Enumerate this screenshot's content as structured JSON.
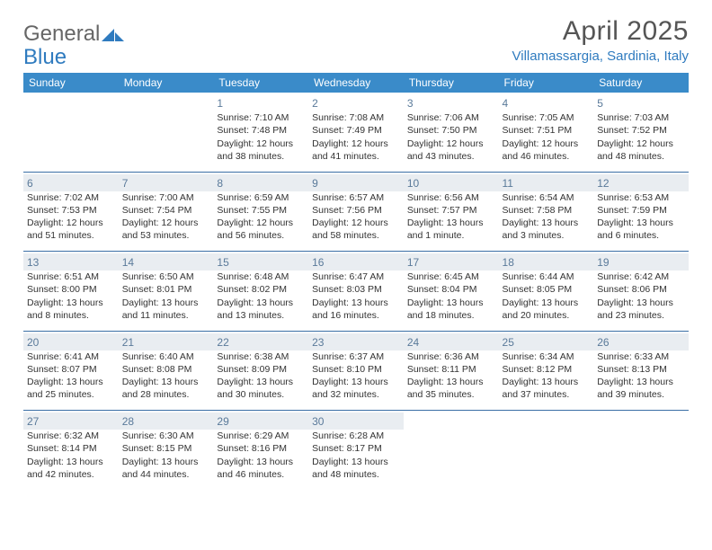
{
  "brand": {
    "part1": "General",
    "part2": "Blue"
  },
  "title": "April 2025",
  "location": "Villamassargia, Sardinia, Italy",
  "colors": {
    "header_bg": "#3a8bc9",
    "header_text": "#ffffff",
    "accent": "#2f7bbf",
    "row_border": "#3a6ea5",
    "daynum": "#5a7a9a",
    "shade_bg": "#e9edf1",
    "body_text": "#333333",
    "title_text": "#555555",
    "background": "#ffffff"
  },
  "typography": {
    "title_fontsize": 30,
    "location_fontsize": 15,
    "dayheader_fontsize": 12,
    "daynum_fontsize": 12,
    "cell_fontsize": 10.5
  },
  "day_headers": [
    "Sunday",
    "Monday",
    "Tuesday",
    "Wednesday",
    "Thursday",
    "Friday",
    "Saturday"
  ],
  "weeks": [
    [
      {
        "n": "",
        "lines": [],
        "shade": false
      },
      {
        "n": "",
        "lines": [],
        "shade": false
      },
      {
        "n": "1",
        "lines": [
          "Sunrise: 7:10 AM",
          "Sunset: 7:48 PM",
          "Daylight: 12 hours and 38 minutes."
        ],
        "shade": false
      },
      {
        "n": "2",
        "lines": [
          "Sunrise: 7:08 AM",
          "Sunset: 7:49 PM",
          "Daylight: 12 hours and 41 minutes."
        ],
        "shade": false
      },
      {
        "n": "3",
        "lines": [
          "Sunrise: 7:06 AM",
          "Sunset: 7:50 PM",
          "Daylight: 12 hours and 43 minutes."
        ],
        "shade": false
      },
      {
        "n": "4",
        "lines": [
          "Sunrise: 7:05 AM",
          "Sunset: 7:51 PM",
          "Daylight: 12 hours and 46 minutes."
        ],
        "shade": false
      },
      {
        "n": "5",
        "lines": [
          "Sunrise: 7:03 AM",
          "Sunset: 7:52 PM",
          "Daylight: 12 hours and 48 minutes."
        ],
        "shade": false
      }
    ],
    [
      {
        "n": "6",
        "lines": [
          "Sunrise: 7:02 AM",
          "Sunset: 7:53 PM",
          "Daylight: 12 hours and 51 minutes."
        ],
        "shade": true
      },
      {
        "n": "7",
        "lines": [
          "Sunrise: 7:00 AM",
          "Sunset: 7:54 PM",
          "Daylight: 12 hours and 53 minutes."
        ],
        "shade": true
      },
      {
        "n": "8",
        "lines": [
          "Sunrise: 6:59 AM",
          "Sunset: 7:55 PM",
          "Daylight: 12 hours and 56 minutes."
        ],
        "shade": true
      },
      {
        "n": "9",
        "lines": [
          "Sunrise: 6:57 AM",
          "Sunset: 7:56 PM",
          "Daylight: 12 hours and 58 minutes."
        ],
        "shade": true
      },
      {
        "n": "10",
        "lines": [
          "Sunrise: 6:56 AM",
          "Sunset: 7:57 PM",
          "Daylight: 13 hours and 1 minute."
        ],
        "shade": true
      },
      {
        "n": "11",
        "lines": [
          "Sunrise: 6:54 AM",
          "Sunset: 7:58 PM",
          "Daylight: 13 hours and 3 minutes."
        ],
        "shade": true
      },
      {
        "n": "12",
        "lines": [
          "Sunrise: 6:53 AM",
          "Sunset: 7:59 PM",
          "Daylight: 13 hours and 6 minutes."
        ],
        "shade": true
      }
    ],
    [
      {
        "n": "13",
        "lines": [
          "Sunrise: 6:51 AM",
          "Sunset: 8:00 PM",
          "Daylight: 13 hours and 8 minutes."
        ],
        "shade": true
      },
      {
        "n": "14",
        "lines": [
          "Sunrise: 6:50 AM",
          "Sunset: 8:01 PM",
          "Daylight: 13 hours and 11 minutes."
        ],
        "shade": true
      },
      {
        "n": "15",
        "lines": [
          "Sunrise: 6:48 AM",
          "Sunset: 8:02 PM",
          "Daylight: 13 hours and 13 minutes."
        ],
        "shade": true
      },
      {
        "n": "16",
        "lines": [
          "Sunrise: 6:47 AM",
          "Sunset: 8:03 PM",
          "Daylight: 13 hours and 16 minutes."
        ],
        "shade": true
      },
      {
        "n": "17",
        "lines": [
          "Sunrise: 6:45 AM",
          "Sunset: 8:04 PM",
          "Daylight: 13 hours and 18 minutes."
        ],
        "shade": true
      },
      {
        "n": "18",
        "lines": [
          "Sunrise: 6:44 AM",
          "Sunset: 8:05 PM",
          "Daylight: 13 hours and 20 minutes."
        ],
        "shade": true
      },
      {
        "n": "19",
        "lines": [
          "Sunrise: 6:42 AM",
          "Sunset: 8:06 PM",
          "Daylight: 13 hours and 23 minutes."
        ],
        "shade": true
      }
    ],
    [
      {
        "n": "20",
        "lines": [
          "Sunrise: 6:41 AM",
          "Sunset: 8:07 PM",
          "Daylight: 13 hours and 25 minutes."
        ],
        "shade": true
      },
      {
        "n": "21",
        "lines": [
          "Sunrise: 6:40 AM",
          "Sunset: 8:08 PM",
          "Daylight: 13 hours and 28 minutes."
        ],
        "shade": true
      },
      {
        "n": "22",
        "lines": [
          "Sunrise: 6:38 AM",
          "Sunset: 8:09 PM",
          "Daylight: 13 hours and 30 minutes."
        ],
        "shade": true
      },
      {
        "n": "23",
        "lines": [
          "Sunrise: 6:37 AM",
          "Sunset: 8:10 PM",
          "Daylight: 13 hours and 32 minutes."
        ],
        "shade": true
      },
      {
        "n": "24",
        "lines": [
          "Sunrise: 6:36 AM",
          "Sunset: 8:11 PM",
          "Daylight: 13 hours and 35 minutes."
        ],
        "shade": true
      },
      {
        "n": "25",
        "lines": [
          "Sunrise: 6:34 AM",
          "Sunset: 8:12 PM",
          "Daylight: 13 hours and 37 minutes."
        ],
        "shade": true
      },
      {
        "n": "26",
        "lines": [
          "Sunrise: 6:33 AM",
          "Sunset: 8:13 PM",
          "Daylight: 13 hours and 39 minutes."
        ],
        "shade": true
      }
    ],
    [
      {
        "n": "27",
        "lines": [
          "Sunrise: 6:32 AM",
          "Sunset: 8:14 PM",
          "Daylight: 13 hours and 42 minutes."
        ],
        "shade": true
      },
      {
        "n": "28",
        "lines": [
          "Sunrise: 6:30 AM",
          "Sunset: 8:15 PM",
          "Daylight: 13 hours and 44 minutes."
        ],
        "shade": true
      },
      {
        "n": "29",
        "lines": [
          "Sunrise: 6:29 AM",
          "Sunset: 8:16 PM",
          "Daylight: 13 hours and 46 minutes."
        ],
        "shade": true
      },
      {
        "n": "30",
        "lines": [
          "Sunrise: 6:28 AM",
          "Sunset: 8:17 PM",
          "Daylight: 13 hours and 48 minutes."
        ],
        "shade": true
      },
      {
        "n": "",
        "lines": [],
        "shade": false
      },
      {
        "n": "",
        "lines": [],
        "shade": false
      },
      {
        "n": "",
        "lines": [],
        "shade": false
      }
    ]
  ]
}
